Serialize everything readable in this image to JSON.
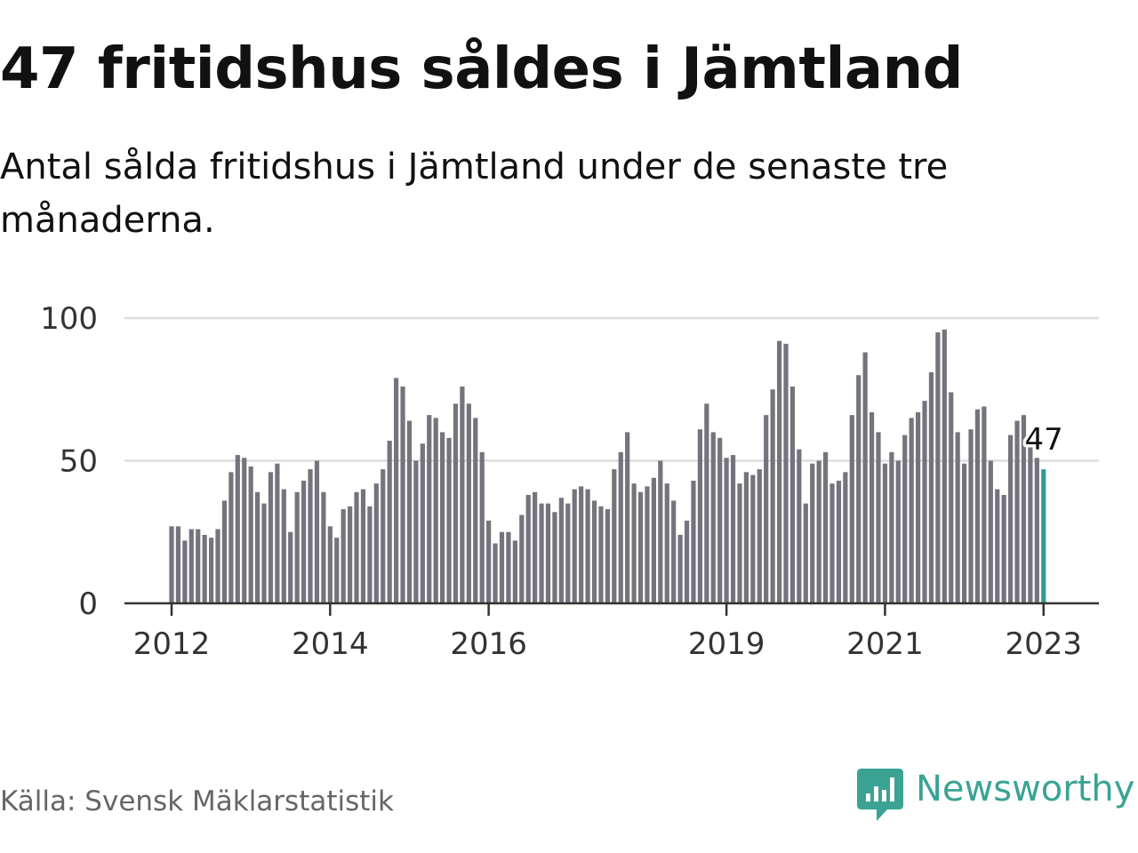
{
  "header": {
    "title": "47 fritidshus såldes i Jämtland",
    "subtitle": "Antal sålda fritidshus i Jämtland under de senaste tre månaderna."
  },
  "footer": {
    "source": "Källa: Svensk Mäklarstatistik",
    "logo_text": "Newsworthy"
  },
  "colors": {
    "bar": "#75737b",
    "highlight": "#2e9e8f",
    "grid": "#dddddd",
    "axis": "#333333",
    "brand": "#3aa394"
  },
  "chart_data": {
    "type": "bar",
    "title": "Antal sålda fritidshus i Jämtland under de senaste tre månaderna.",
    "xlabel": "",
    "ylabel": "",
    "ylim": [
      0,
      100
    ],
    "y_ticks": [
      0,
      50,
      100
    ],
    "x_ticks": [
      "2012",
      "2014",
      "2016",
      "2019",
      "2021",
      "2023"
    ],
    "x_tick_positions": [
      0,
      24,
      48,
      84,
      108,
      132
    ],
    "grid": true,
    "legend": "none",
    "highlight_last": true,
    "last_label": "47",
    "start": "2012-01",
    "values": [
      27,
      27,
      22,
      26,
      26,
      24,
      23,
      26,
      36,
      46,
      52,
      51,
      48,
      39,
      35,
      46,
      49,
      40,
      25,
      39,
      43,
      47,
      50,
      39,
      27,
      23,
      33,
      34,
      39,
      40,
      34,
      42,
      47,
      57,
      79,
      76,
      64,
      50,
      56,
      66,
      65,
      60,
      58,
      70,
      76,
      70,
      65,
      53,
      29,
      21,
      25,
      25,
      22,
      31,
      38,
      39,
      35,
      35,
      32,
      37,
      35,
      40,
      41,
      40,
      36,
      34,
      33,
      47,
      53,
      60,
      42,
      39,
      41,
      44,
      50,
      42,
      36,
      24,
      29,
      43,
      61,
      70,
      60,
      58,
      51,
      52,
      42,
      46,
      45,
      47,
      66,
      75,
      92,
      91,
      76,
      54,
      35,
      49,
      50,
      53,
      42,
      43,
      46,
      66,
      80,
      88,
      67,
      60,
      49,
      53,
      50,
      59,
      65,
      67,
      71,
      81,
      95,
      96,
      74,
      60,
      49,
      61,
      68,
      69,
      50,
      40,
      38,
      59,
      64,
      66,
      58,
      51,
      47
    ]
  }
}
